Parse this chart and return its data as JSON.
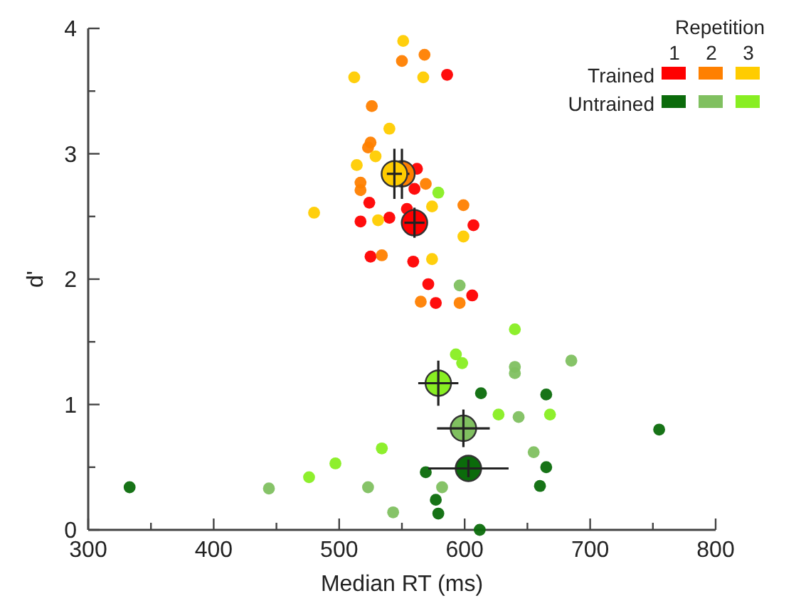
{
  "chart_data": {
    "type": "scatter",
    "xlabel": "Median RT (ms)",
    "ylabel": "d'",
    "legend_title": "Repetition",
    "marker": "circle",
    "grid": false,
    "annotations": [
      "Trained",
      "Untrained",
      "1",
      "2",
      "3"
    ],
    "xlim": [
      300,
      800
    ],
    "xticks": [
      300,
      {
        "value": 350,
        "label": null
      },
      400,
      {
        "value": 450,
        "label": null
      },
      500,
      {
        "value": 550,
        "label": null
      },
      600,
      {
        "value": 650,
        "label": null
      },
      700,
      {
        "value": 750,
        "label": null
      },
      800
    ],
    "ylim": [
      0,
      4
    ],
    "yticks": [
      0,
      {
        "value": 0.5,
        "label": null
      },
      1,
      {
        "value": 1.5,
        "label": null
      },
      2,
      {
        "value": 2.5,
        "label": null
      },
      3,
      {
        "value": 3.5,
        "label": null
      },
      4
    ],
    "series": [
      {
        "color": "#ff0000",
        "x": [
          586,
          562,
          560,
          524,
          554,
          517,
          540,
          607,
          525,
          559,
          571,
          606,
          577
        ],
        "values": [
          3.63,
          2.88,
          2.72,
          2.61,
          2.56,
          2.46,
          2.49,
          2.43,
          2.18,
          2.14,
          1.96,
          1.87,
          1.81
        ]
      },
      {
        "color": "#ff8000",
        "x": [
          568,
          550,
          526,
          525,
          523,
          517,
          517,
          569,
          599,
          534,
          565,
          596
        ],
        "values": [
          3.79,
          3.74,
          3.38,
          3.09,
          3.05,
          2.77,
          2.71,
          2.76,
          2.59,
          2.19,
          1.82,
          1.81
        ]
      },
      {
        "color": "#ffcc00",
        "x": [
          551,
          512,
          567,
          540,
          529,
          514,
          574,
          480,
          531,
          599,
          574
        ],
        "values": [
          3.9,
          3.61,
          3.61,
          3.2,
          2.98,
          2.91,
          2.58,
          2.53,
          2.47,
          2.34,
          2.16
        ]
      },
      {
        "color": "#0b6b0b",
        "x": [
          333,
          569,
          577,
          579,
          612,
          613,
          665,
          755,
          665,
          660
        ],
        "values": [
          0.34,
          0.46,
          0.24,
          0.13,
          0,
          1.09,
          1.08,
          0.8,
          0.5,
          0.35
        ]
      },
      {
        "color": "#80c060",
        "x": [
          444,
          523,
          543,
          582,
          596,
          640,
          640,
          685,
          643,
          655
        ],
        "values": [
          0.33,
          0.34,
          0.14,
          0.34,
          1.95,
          1.3,
          1.25,
          1.35,
          0.9,
          0.62
        ]
      },
      {
        "color": "#88ee22",
        "x": [
          476,
          497,
          534,
          593,
          598,
          627,
          579,
          640,
          668
        ],
        "values": [
          0.42,
          0.53,
          0.65,
          1.4,
          1.33,
          0.92,
          2.69,
          1.6,
          0.92
        ]
      },
      {
        "color": "#ff0000",
        "x": [
          560
        ],
        "values": [
          2.45
        ],
        "errors": [
          0.12
        ],
        "xerrors": [
          8
        ]
      },
      {
        "color": "#ff8000",
        "x": [
          550
        ],
        "values": [
          2.84
        ],
        "errors": [
          0.2
        ],
        "xerrors": [
          6
        ]
      },
      {
        "color": "#ffcc00",
        "x": [
          544
        ],
        "values": [
          2.84
        ],
        "errors": [
          0.2
        ],
        "xerrors": [
          6
        ]
      },
      {
        "color": "#0b6b0b",
        "x": [
          603
        ],
        "values": [
          0.49
        ],
        "errors": [
          0.07
        ],
        "xerrors": [
          32
        ]
      },
      {
        "color": "#80c060",
        "x": [
          599
        ],
        "values": [
          0.81
        ],
        "errors": [
          0.15
        ],
        "xerrors": [
          21
        ]
      },
      {
        "color": "#88ee22",
        "x": [
          579
        ],
        "values": [
          1.17
        ],
        "errors": [
          0.18
        ],
        "xerrors": [
          16
        ]
      }
    ]
  }
}
